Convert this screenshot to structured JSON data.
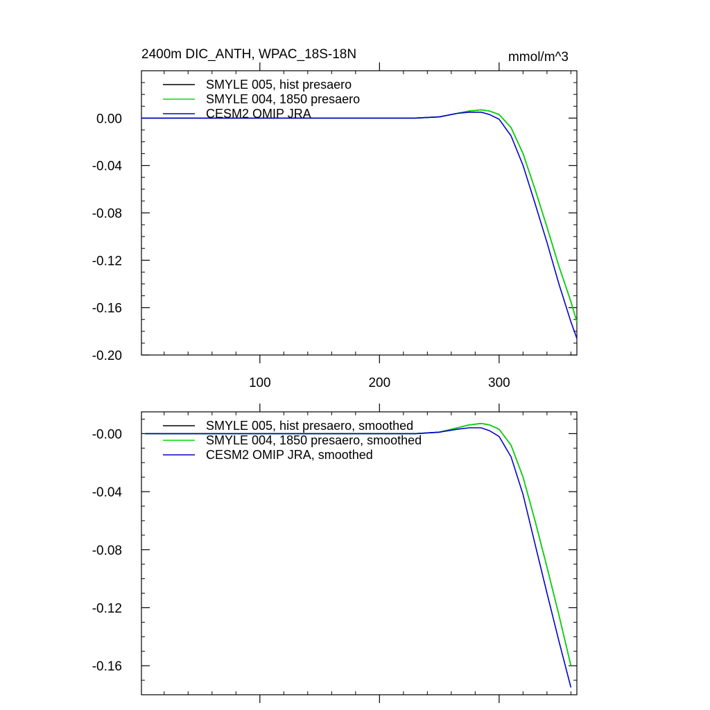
{
  "figure": {
    "title_left": "2400m DIC_ANTH, WPAC_18S-18N",
    "title_right": "mmol/m^3"
  },
  "chart_data": [
    {
      "type": "line",
      "title": "2400m DIC_ANTH, WPAC_18S-18N",
      "units": "mmol/m^3",
      "xlim": [
        1,
        365
      ],
      "ylim": [
        -0.2,
        0.04
      ],
      "xticks": [
        100,
        200,
        300
      ],
      "xtick_labels": [
        "100",
        "200",
        "300"
      ],
      "yticks": [
        0.0,
        -0.04,
        -0.08,
        -0.12,
        -0.16,
        -0.2
      ],
      "ytick_labels": [
        "0.00",
        "-0.04",
        "-0.08",
        "-0.12",
        "-0.16",
        "-0.20"
      ],
      "grid": false,
      "legend_position": "top-left",
      "x": [
        1,
        100,
        200,
        230,
        250,
        265,
        275,
        285,
        292,
        300,
        310,
        320,
        330,
        340,
        350,
        360,
        365
      ],
      "series": [
        {
          "name": "SMYLE 005, hist presaero",
          "color": "#000000",
          "values": [
            0.0,
            0.0,
            0.0,
            0.0,
            0.001,
            0.004,
            0.006,
            0.007,
            0.006,
            0.003,
            -0.008,
            -0.03,
            -0.06,
            -0.092,
            -0.125,
            -0.155,
            -0.172
          ]
        },
        {
          "name": "SMYLE 004, 1850 presaero",
          "color": "#00dd00",
          "values": [
            0.0,
            0.0,
            0.0,
            0.0,
            0.001,
            0.004,
            0.006,
            0.007,
            0.006,
            0.003,
            -0.008,
            -0.03,
            -0.06,
            -0.092,
            -0.125,
            -0.155,
            -0.172
          ]
        },
        {
          "name": "CESM2 OMIP JRA",
          "color": "#0000cc",
          "values": [
            0.0,
            0.0,
            0.0,
            0.0,
            0.001,
            0.004,
            0.005,
            0.005,
            0.003,
            -0.001,
            -0.015,
            -0.04,
            -0.072,
            -0.105,
            -0.14,
            -0.172,
            -0.186
          ]
        }
      ]
    },
    {
      "type": "line",
      "xlim": [
        1,
        365
      ],
      "ylim": [
        -0.18,
        0.015
      ],
      "xticks": [
        100,
        200,
        300
      ],
      "xtick_labels": [
        "",
        "",
        ""
      ],
      "yticks": [
        0.0,
        -0.04,
        -0.08,
        -0.12,
        -0.16
      ],
      "ytick_labels": [
        "-0.00",
        "-0.04",
        "-0.08",
        "-0.12",
        "-0.16"
      ],
      "grid": false,
      "legend_position": "top-left",
      "x": [
        4,
        100,
        200,
        230,
        250,
        265,
        275,
        285,
        292,
        300,
        310,
        320,
        330,
        340,
        350,
        360
      ],
      "series": [
        {
          "name": "SMYLE 005, hist presaero, smoothed",
          "color": "#000000",
          "values": [
            0.0,
            0.0,
            0.0,
            0.0,
            0.001,
            0.004,
            0.006,
            0.007,
            0.006,
            0.003,
            -0.008,
            -0.03,
            -0.06,
            -0.092,
            -0.125,
            -0.16
          ]
        },
        {
          "name": "SMYLE 004, 1850 presaero, smoothed",
          "color": "#00dd00",
          "values": [
            0.0,
            0.0,
            0.0,
            0.0,
            0.001,
            0.004,
            0.006,
            0.007,
            0.006,
            0.003,
            -0.008,
            -0.03,
            -0.06,
            -0.092,
            -0.125,
            -0.16
          ]
        },
        {
          "name": "CESM2 OMIP JRA, smoothed",
          "color": "#0000cc",
          "values": [
            0.0,
            0.0,
            0.0,
            0.0,
            0.001,
            0.003,
            0.004,
            0.004,
            0.002,
            -0.002,
            -0.016,
            -0.042,
            -0.076,
            -0.11,
            -0.143,
            -0.175
          ]
        }
      ]
    }
  ]
}
